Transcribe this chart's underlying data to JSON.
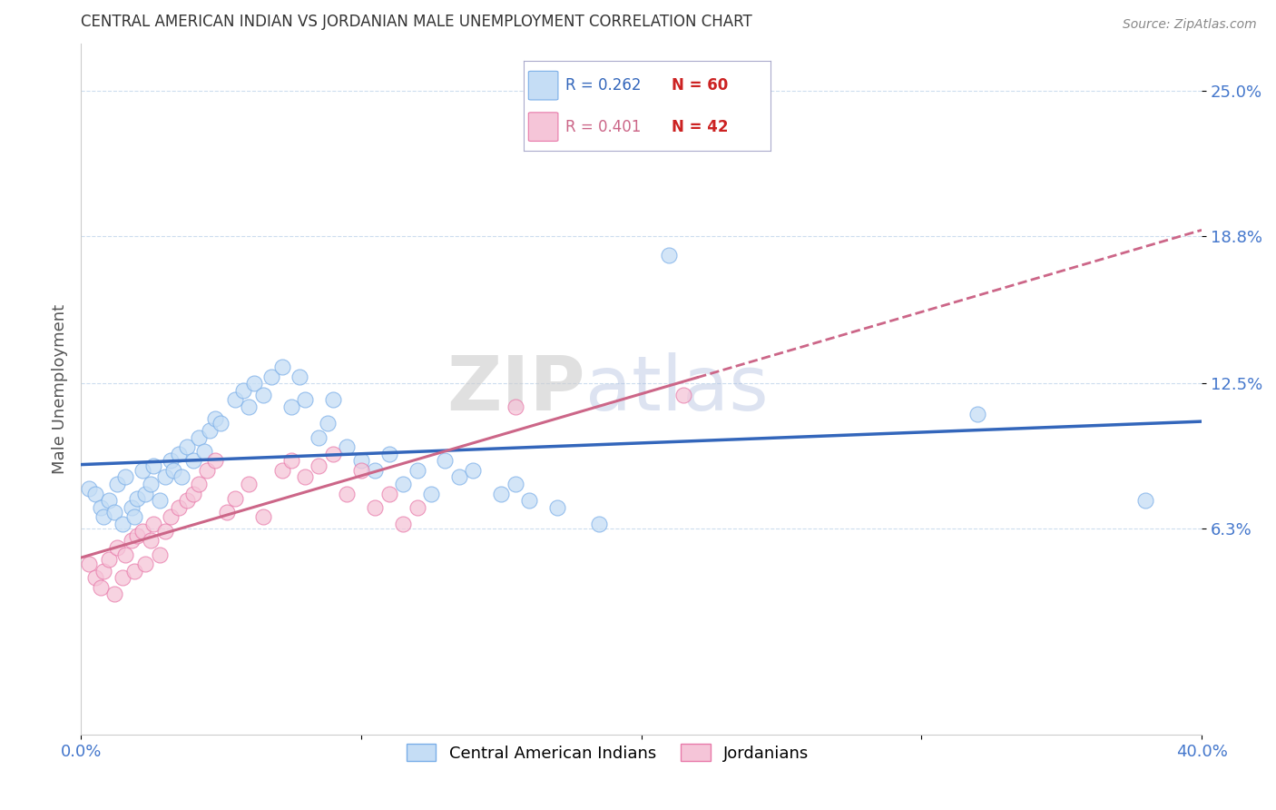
{
  "title": "CENTRAL AMERICAN INDIAN VS JORDANIAN MALE UNEMPLOYMENT CORRELATION CHART",
  "source": "Source: ZipAtlas.com",
  "ylabel": "Male Unemployment",
  "xlim": [
    0.0,
    0.4
  ],
  "ylim": [
    -0.025,
    0.27
  ],
  "ytick_positions": [
    0.063,
    0.125,
    0.188,
    0.25
  ],
  "ytick_labels": [
    "6.3%",
    "12.5%",
    "18.8%",
    "25.0%"
  ],
  "legend_r1": "R = 0.262",
  "legend_n1": "N = 60",
  "legend_r2": "R = 0.401",
  "legend_n2": "N = 42",
  "color_blue_fill": "#c5ddf5",
  "color_blue_edge": "#7aaee8",
  "color_pink_fill": "#f5c5d8",
  "color_pink_edge": "#e87aaa",
  "color_line_blue": "#3366bb",
  "color_line_pink": "#cc6688",
  "background_color": "#ffffff",
  "watermark_zip": "ZIP",
  "watermark_atlas": "atlas",
  "blue_scatter_x": [
    0.003,
    0.005,
    0.007,
    0.008,
    0.01,
    0.012,
    0.013,
    0.015,
    0.016,
    0.018,
    0.019,
    0.02,
    0.022,
    0.023,
    0.025,
    0.026,
    0.028,
    0.03,
    0.032,
    0.033,
    0.035,
    0.036,
    0.038,
    0.04,
    0.042,
    0.044,
    0.046,
    0.048,
    0.05,
    0.055,
    0.058,
    0.06,
    0.062,
    0.065,
    0.068,
    0.072,
    0.075,
    0.078,
    0.08,
    0.085,
    0.088,
    0.09,
    0.095,
    0.1,
    0.105,
    0.11,
    0.115,
    0.12,
    0.125,
    0.13,
    0.135,
    0.14,
    0.15,
    0.155,
    0.16,
    0.17,
    0.185,
    0.21,
    0.32,
    0.38
  ],
  "blue_scatter_y": [
    0.08,
    0.078,
    0.072,
    0.068,
    0.075,
    0.07,
    0.082,
    0.065,
    0.085,
    0.072,
    0.068,
    0.076,
    0.088,
    0.078,
    0.082,
    0.09,
    0.075,
    0.085,
    0.092,
    0.088,
    0.095,
    0.085,
    0.098,
    0.092,
    0.102,
    0.096,
    0.105,
    0.11,
    0.108,
    0.118,
    0.122,
    0.115,
    0.125,
    0.12,
    0.128,
    0.132,
    0.115,
    0.128,
    0.118,
    0.102,
    0.108,
    0.118,
    0.098,
    0.092,
    0.088,
    0.095,
    0.082,
    0.088,
    0.078,
    0.092,
    0.085,
    0.088,
    0.078,
    0.082,
    0.075,
    0.072,
    0.065,
    0.18,
    0.112,
    0.075
  ],
  "pink_scatter_x": [
    0.003,
    0.005,
    0.007,
    0.008,
    0.01,
    0.012,
    0.013,
    0.015,
    0.016,
    0.018,
    0.019,
    0.02,
    0.022,
    0.023,
    0.025,
    0.026,
    0.028,
    0.03,
    0.032,
    0.035,
    0.038,
    0.04,
    0.042,
    0.045,
    0.048,
    0.052,
    0.055,
    0.06,
    0.065,
    0.072,
    0.075,
    0.08,
    0.085,
    0.09,
    0.095,
    0.1,
    0.105,
    0.11,
    0.115,
    0.12,
    0.155,
    0.215
  ],
  "pink_scatter_y": [
    0.048,
    0.042,
    0.038,
    0.045,
    0.05,
    0.035,
    0.055,
    0.042,
    0.052,
    0.058,
    0.045,
    0.06,
    0.062,
    0.048,
    0.058,
    0.065,
    0.052,
    0.062,
    0.068,
    0.072,
    0.075,
    0.078,
    0.082,
    0.088,
    0.092,
    0.07,
    0.076,
    0.082,
    0.068,
    0.088,
    0.092,
    0.085,
    0.09,
    0.095,
    0.078,
    0.088,
    0.072,
    0.078,
    0.065,
    0.072,
    0.115,
    0.12
  ]
}
